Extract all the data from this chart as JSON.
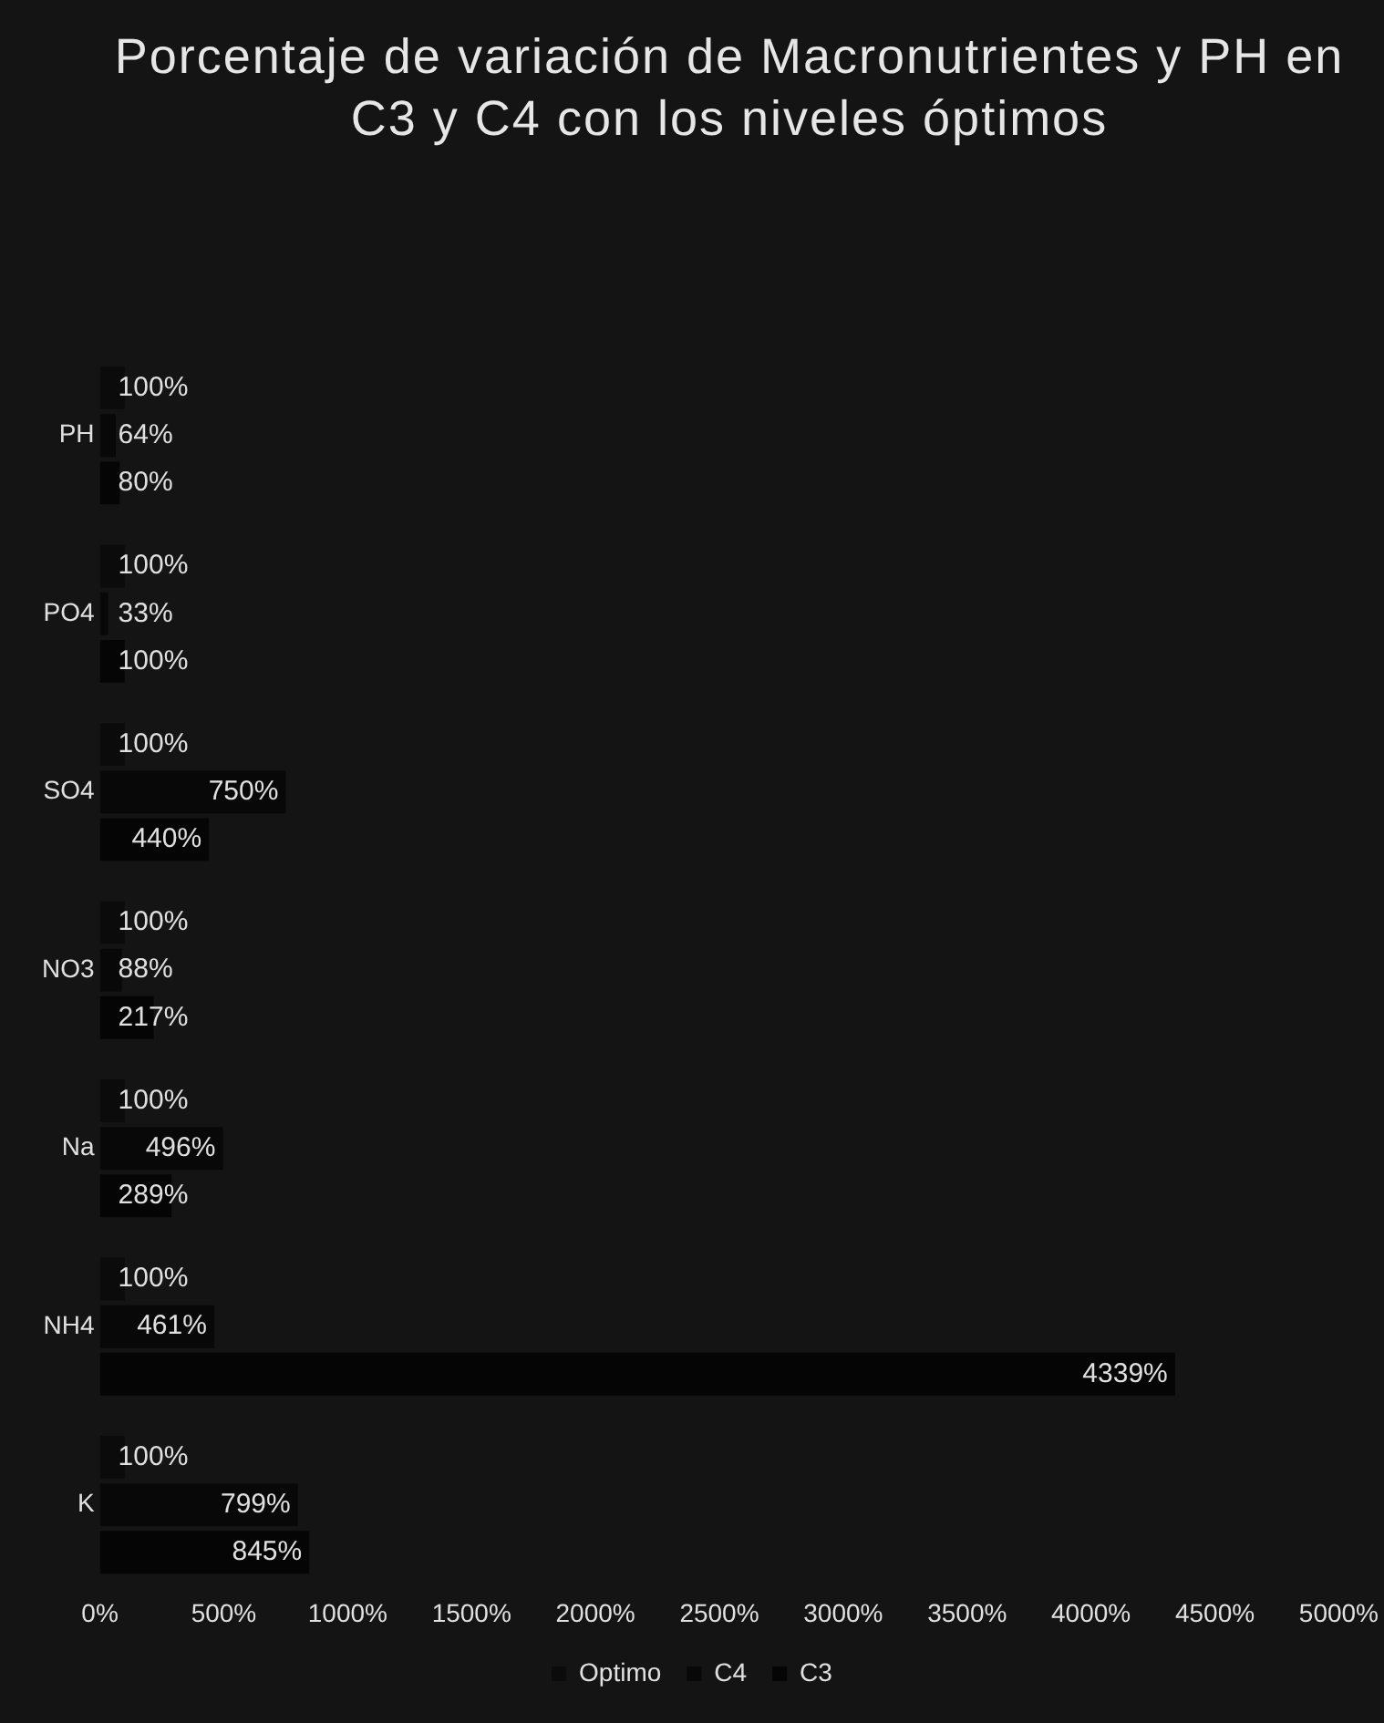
{
  "chart_data": {
    "type": "bar",
    "orientation": "horizontal",
    "title": "Porcentaje de variación de Macronutrientes y PH en C3 y C4 con los niveles óptimos",
    "categories": [
      "PH",
      "PO4",
      "SO4",
      "NO3",
      "Na",
      "NH4",
      "K"
    ],
    "series": [
      {
        "name": "Optimo",
        "color": "#0b0b0b",
        "values": [
          100,
          100,
          100,
          100,
          100,
          100,
          100
        ],
        "value_labels": [
          "100%",
          "100%",
          "100%",
          "100%",
          "100%",
          "100%",
          "100%"
        ]
      },
      {
        "name": "C4",
        "color": "#080808",
        "values": [
          64,
          33,
          750,
          88,
          496,
          461,
          799
        ],
        "value_labels": [
          "64%",
          "33%",
          "750%",
          "88%",
          "496%",
          "461%",
          "799%"
        ]
      },
      {
        "name": "C3",
        "color": "#050505",
        "values": [
          80,
          100,
          440,
          217,
          289,
          4339,
          845
        ],
        "value_labels": [
          "80%",
          "100%",
          "440%",
          "217%",
          "289%",
          "4339%",
          "845%"
        ]
      }
    ],
    "xlim": [
      0,
      5000
    ],
    "xticks": [
      {
        "value": 0,
        "label": "0%"
      },
      {
        "value": 500,
        "label": "500%"
      },
      {
        "value": 1000,
        "label": "1000%"
      },
      {
        "value": 1500,
        "label": "1500%"
      },
      {
        "value": 2000,
        "label": "2000%"
      },
      {
        "value": 2500,
        "label": "2500%"
      },
      {
        "value": 3000,
        "label": "3000%"
      },
      {
        "value": 3500,
        "label": "3500%"
      },
      {
        "value": 4000,
        "label": "4000%"
      },
      {
        "value": 4500,
        "label": "4500%"
      },
      {
        "value": 5000,
        "label": "5000%"
      }
    ],
    "grid": false,
    "legend": "bottom"
  }
}
